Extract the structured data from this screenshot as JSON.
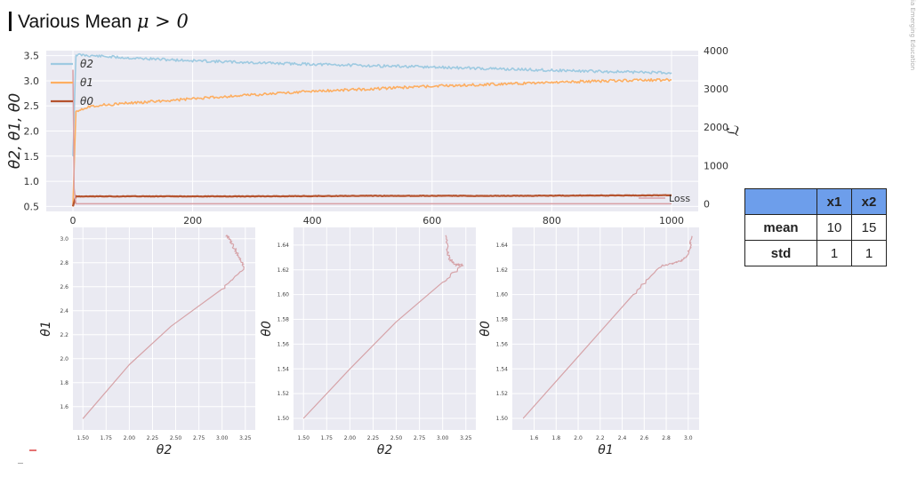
{
  "header": {
    "title_prefix": "Various Mean ",
    "title_math": "μ > 0"
  },
  "side_text": "ia Emerging Education",
  "colors": {
    "theta2": "#9ecae1",
    "theta1": "#fdae61",
    "theta0": "#b5532e",
    "loss": "#d9a0a6",
    "panel_bg": "#eaeaf2",
    "trajectory": "#d6a3a8",
    "table_header": "#6d9eeb"
  },
  "stats_table": {
    "columns": [
      "x1",
      "x2"
    ],
    "rows": [
      {
        "label": "mean",
        "values": [
          "10",
          "15"
        ]
      },
      {
        "label": "std",
        "values": [
          "1",
          "1"
        ]
      }
    ]
  },
  "chart_data": [
    {
      "type": "line",
      "ylabel": "θ2, θ1, θ0",
      "y2label": "ℒ",
      "xlim": [
        0,
        1000
      ],
      "ylim": [
        0.4,
        3.6
      ],
      "y2lim": [
        -200,
        4000
      ],
      "xticks": [
        "0",
        "200",
        "400",
        "600",
        "800",
        "1000"
      ],
      "yticks": [
        "0.5",
        "1.0",
        "1.5",
        "2.0",
        "2.5",
        "3.0",
        "3.5"
      ],
      "y2ticks": [
        "0",
        "1000",
        "2000",
        "3000",
        "4000"
      ],
      "legend": [
        "θ2",
        "θ1",
        "θ0"
      ],
      "legend_position": "top-left",
      "loss_label": "Loss",
      "grid": true,
      "series": [
        {
          "name": "θ2",
          "x": [
            0,
            5,
            30,
            100,
            200,
            300,
            400,
            500,
            600,
            700,
            800,
            900,
            1000
          ],
          "values": [
            1.5,
            3.52,
            3.5,
            3.45,
            3.4,
            3.36,
            3.33,
            3.3,
            3.27,
            3.24,
            3.21,
            3.18,
            3.16
          ]
        },
        {
          "name": "θ1",
          "x": [
            0,
            5,
            30,
            100,
            200,
            300,
            400,
            500,
            600,
            700,
            800,
            900,
            1000
          ],
          "values": [
            0.5,
            2.4,
            2.5,
            2.56,
            2.64,
            2.72,
            2.79,
            2.84,
            2.89,
            2.93,
            2.97,
            3.0,
            3.02
          ]
        },
        {
          "name": "θ0",
          "x": [
            0,
            5,
            30,
            100,
            300,
            500,
            700,
            1000
          ],
          "values": [
            0.5,
            0.7,
            0.7,
            0.7,
            0.7,
            0.71,
            0.71,
            0.72
          ]
        },
        {
          "name": "Loss",
          "x": [
            0,
            2,
            5,
            100,
            500,
            1000
          ],
          "values": [
            3500,
            400,
            0,
            0,
            0,
            0
          ]
        }
      ]
    },
    {
      "type": "line",
      "xlabel": "θ2",
      "ylabel": "θ1",
      "xlim": [
        1.45,
        3.3
      ],
      "ylim": [
        1.45,
        3.05
      ],
      "xticks": [
        "1.50",
        "1.75",
        "2.00",
        "2.25",
        "2.50",
        "2.75",
        "3.00",
        "3.25"
      ],
      "yticks": [
        "1.6",
        "1.8",
        "2.0",
        "2.2",
        "2.4",
        "2.6",
        "2.8",
        "3.0"
      ],
      "x": [
        1.5,
        2.0,
        2.45,
        3.0,
        3.24,
        3.2,
        3.16,
        3.12,
        3.08,
        3.05
      ],
      "values": [
        1.5,
        1.95,
        2.27,
        2.58,
        2.75,
        2.82,
        2.88,
        2.94,
        3.0,
        3.03
      ]
    },
    {
      "type": "line",
      "xlabel": "θ2",
      "ylabel": "θ0",
      "xlim": [
        1.45,
        3.3
      ],
      "ylim": [
        1.495,
        1.65
      ],
      "xticks": [
        "1.50",
        "1.75",
        "2.00",
        "2.25",
        "2.50",
        "2.75",
        "3.00",
        "3.25"
      ],
      "yticks": [
        "1.50",
        "1.52",
        "1.54",
        "1.56",
        "1.58",
        "1.60",
        "1.62",
        "1.64"
      ],
      "x": [
        1.5,
        2.0,
        2.5,
        3.0,
        3.22,
        3.15,
        3.08,
        3.05,
        3.04
      ],
      "values": [
        1.5,
        1.54,
        1.578,
        1.61,
        1.624,
        1.624,
        1.628,
        1.635,
        1.648
      ]
    },
    {
      "type": "line",
      "xlabel": "θ1",
      "ylabel": "θ0",
      "xlim": [
        1.45,
        3.05
      ],
      "ylim": [
        1.495,
        1.65
      ],
      "xticks": [
        "1.6",
        "1.8",
        "2.0",
        "2.2",
        "2.4",
        "2.6",
        "2.8",
        "3.0"
      ],
      "yticks": [
        "1.50",
        "1.52",
        "1.54",
        "1.56",
        "1.58",
        "1.60",
        "1.62",
        "1.64"
      ],
      "x": [
        1.5,
        1.9,
        2.2,
        2.5,
        2.75,
        2.85,
        2.92,
        2.98,
        3.02,
        3.03
      ],
      "values": [
        1.5,
        1.54,
        1.57,
        1.6,
        1.623,
        1.625,
        1.627,
        1.63,
        1.638,
        1.648
      ]
    }
  ]
}
